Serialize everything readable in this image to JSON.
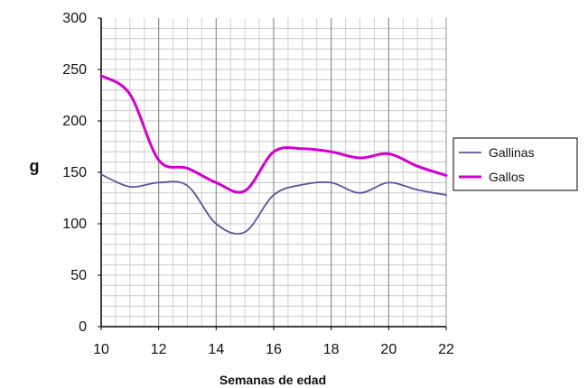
{
  "chart_data": {
    "type": "line",
    "title": "",
    "xlabel": "Semanas de edad",
    "ylabel": "g",
    "xlim": [
      10,
      22
    ],
    "ylim": [
      0,
      300
    ],
    "x_ticks": [
      10,
      12,
      14,
      16,
      18,
      20,
      22
    ],
    "y_ticks": [
      0,
      50,
      100,
      150,
      200,
      250,
      300
    ],
    "grid": true,
    "legend": {
      "placement": "right",
      "entries": [
        "Gallinas",
        "Gallos"
      ]
    },
    "series": [
      {
        "name": "Gallinas",
        "color": "#5a55a2",
        "x": [
          10,
          11,
          12,
          13,
          14,
          15,
          16,
          17,
          18,
          19,
          20,
          21,
          22
        ],
        "values": [
          148,
          136,
          140,
          137,
          100,
          92,
          128,
          138,
          140,
          130,
          140,
          133,
          128
        ]
      },
      {
        "name": "Gallos",
        "color": "#d100d1",
        "x": [
          10,
          11,
          12,
          13,
          14,
          15,
          16,
          17,
          18,
          19,
          20,
          21,
          22
        ],
        "values": [
          244,
          226,
          162,
          154,
          140,
          132,
          170,
          173,
          170,
          164,
          168,
          156,
          147
        ]
      }
    ]
  }
}
